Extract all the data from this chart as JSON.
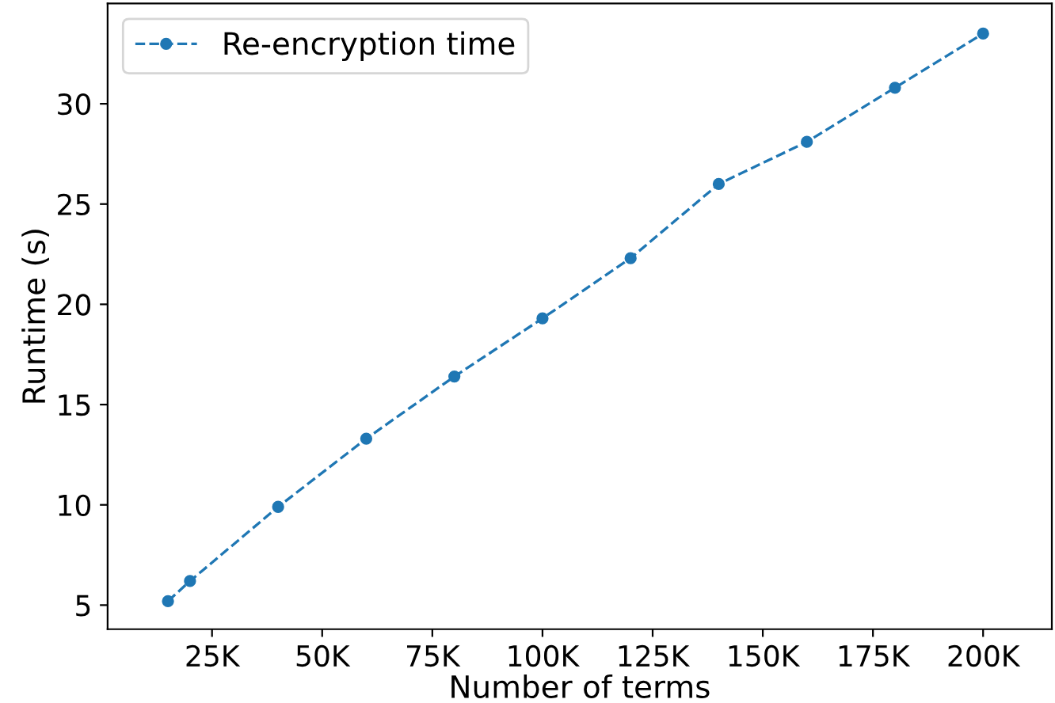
{
  "chart_data": {
    "type": "line",
    "xlabel": "Number of terms",
    "ylabel": "Runtime (s)",
    "x": [
      15,
      20,
      40,
      60,
      80,
      100,
      120,
      140,
      160,
      180,
      200
    ],
    "series": [
      {
        "name": "Re-encryption time",
        "color": "#1f77b4",
        "values": [
          5.2,
          6.2,
          9.9,
          13.3,
          16.4,
          19.3,
          22.3,
          26.0,
          28.1,
          30.8,
          33.5
        ]
      }
    ],
    "xlim": [
      1.3,
      215.6
    ],
    "ylim": [
      3.8,
      35.0
    ],
    "xticks": [
      {
        "value": 25,
        "label": "25K"
      },
      {
        "value": 50,
        "label": "50K"
      },
      {
        "value": 75,
        "label": "75K"
      },
      {
        "value": 100,
        "label": "100K"
      },
      {
        "value": 125,
        "label": "125K"
      },
      {
        "value": 150,
        "label": "150K"
      },
      {
        "value": 175,
        "label": "175K"
      },
      {
        "value": 200,
        "label": "200K"
      }
    ],
    "yticks": [
      5,
      10,
      15,
      20,
      25,
      30
    ],
    "marker": "circle",
    "line_style": "dashed",
    "legend": "top left",
    "grid": false
  }
}
